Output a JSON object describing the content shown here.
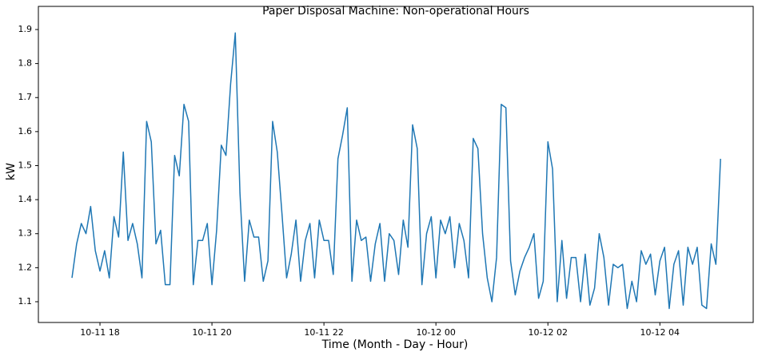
{
  "chart_data": {
    "type": "line",
    "title": "Paper Disposal Machine: Non-operational Hours",
    "x_label": "Time (Month - Day - Hour)",
    "y_label": "kW",
    "x": [
      "10-11 17:30",
      "10-11 17:35",
      "10-11 17:40",
      "10-11 17:45",
      "10-11 17:50",
      "10-11 17:55",
      "10-11 18:00",
      "10-11 18:05",
      "10-11 18:10",
      "10-11 18:15",
      "10-11 18:20",
      "10-11 18:25",
      "10-11 18:30",
      "10-11 18:35",
      "10-11 18:40",
      "10-11 18:45",
      "10-11 18:50",
      "10-11 18:55",
      "10-11 19:00",
      "10-11 19:05",
      "10-11 19:10",
      "10-11 19:15",
      "10-11 19:20",
      "10-11 19:25",
      "10-11 19:30",
      "10-11 19:35",
      "10-11 19:40",
      "10-11 19:45",
      "10-11 19:50",
      "10-11 19:55",
      "10-11 20:00",
      "10-11 20:05",
      "10-11 20:10",
      "10-11 20:15",
      "10-11 20:20",
      "10-11 20:25",
      "10-11 20:30",
      "10-11 20:35",
      "10-11 20:40",
      "10-11 20:45",
      "10-11 20:50",
      "10-11 20:55",
      "10-11 21:00",
      "10-11 21:05",
      "10-11 21:10",
      "10-11 21:15",
      "10-11 21:20",
      "10-11 21:25",
      "10-11 21:30",
      "10-11 21:35",
      "10-11 21:40",
      "10-11 21:45",
      "10-11 21:50",
      "10-11 21:55",
      "10-11 22:00",
      "10-11 22:05",
      "10-11 22:10",
      "10-11 22:15",
      "10-11 22:20",
      "10-11 22:25",
      "10-11 22:30",
      "10-11 22:35",
      "10-11 22:40",
      "10-11 22:45",
      "10-11 22:50",
      "10-11 22:55",
      "10-11 23:00",
      "10-11 23:05",
      "10-11 23:10",
      "10-11 23:15",
      "10-11 23:20",
      "10-11 23:25",
      "10-11 23:30",
      "10-11 23:35",
      "10-11 23:40",
      "10-11 23:45",
      "10-11 23:50",
      "10-11 23:55",
      "10-12 00:00",
      "10-12 00:05",
      "10-12 00:10",
      "10-12 00:15",
      "10-12 00:20",
      "10-12 00:25",
      "10-12 00:30",
      "10-12 00:35",
      "10-12 00:40",
      "10-12 00:45",
      "10-12 00:50",
      "10-12 00:55",
      "10-12 01:00",
      "10-12 01:05",
      "10-12 01:10",
      "10-12 01:15",
      "10-12 01:20",
      "10-12 01:25",
      "10-12 01:30",
      "10-12 01:35",
      "10-12 01:40",
      "10-12 01:45",
      "10-12 01:50",
      "10-12 01:55",
      "10-12 02:00",
      "10-12 02:05",
      "10-12 02:10",
      "10-12 02:15",
      "10-12 02:20",
      "10-12 02:25",
      "10-12 02:30",
      "10-12 02:35",
      "10-12 02:40",
      "10-12 02:45",
      "10-12 02:50",
      "10-12 02:55",
      "10-12 03:00",
      "10-12 03:05",
      "10-12 03:10",
      "10-12 03:15",
      "10-12 03:20",
      "10-12 03:25",
      "10-12 03:30",
      "10-12 03:35",
      "10-12 03:40",
      "10-12 03:45",
      "10-12 03:50",
      "10-12 03:55",
      "10-12 04:00",
      "10-12 04:05",
      "10-12 04:10",
      "10-12 04:15",
      "10-12 04:20",
      "10-12 04:25",
      "10-12 04:30",
      "10-12 04:35",
      "10-12 04:40",
      "10-12 04:45",
      "10-12 04:50",
      "10-12 04:55",
      "10-12 05:00",
      "10-12 05:05"
    ],
    "series": [
      {
        "name": "kW",
        "color": "#1f77b4",
        "values": [
          1.17,
          1.27,
          1.33,
          1.3,
          1.38,
          1.25,
          1.19,
          1.25,
          1.17,
          1.35,
          1.29,
          1.54,
          1.28,
          1.33,
          1.27,
          1.17,
          1.63,
          1.57,
          1.27,
          1.31,
          1.15,
          1.15,
          1.53,
          1.47,
          1.68,
          1.63,
          1.15,
          1.28,
          1.28,
          1.33,
          1.15,
          1.31,
          1.56,
          1.53,
          1.74,
          1.89,
          1.42,
          1.16,
          1.34,
          1.29,
          1.29,
          1.16,
          1.22,
          1.63,
          1.54,
          1.36,
          1.17,
          1.24,
          1.34,
          1.16,
          1.28,
          1.33,
          1.17,
          1.34,
          1.28,
          1.28,
          1.18,
          1.52,
          1.59,
          1.67,
          1.16,
          1.34,
          1.28,
          1.29,
          1.16,
          1.27,
          1.33,
          1.16,
          1.3,
          1.28,
          1.18,
          1.34,
          1.26,
          1.62,
          1.55,
          1.15,
          1.3,
          1.35,
          1.17,
          1.34,
          1.3,
          1.35,
          1.2,
          1.33,
          1.28,
          1.17,
          1.58,
          1.55,
          1.3,
          1.17,
          1.1,
          1.23,
          1.68,
          1.67,
          1.22,
          1.12,
          1.19,
          1.23,
          1.26,
          1.3,
          1.11,
          1.16,
          1.57,
          1.49,
          1.1,
          1.28,
          1.11,
          1.23,
          1.23,
          1.1,
          1.24,
          1.09,
          1.14,
          1.3,
          1.23,
          1.09,
          1.21,
          1.2,
          1.21,
          1.08,
          1.16,
          1.1,
          1.25,
          1.21,
          1.24,
          1.12,
          1.22,
          1.26,
          1.08,
          1.21,
          1.25,
          1.09,
          1.26,
          1.21,
          1.26,
          1.09,
          1.08,
          1.27,
          1.21,
          1.52
        ]
      }
    ],
    "xlim": [
      "10-11 16:54",
      "10-12 05:40"
    ],
    "xticks": [
      "10-11 18",
      "10-11 20",
      "10-11 22",
      "10-12 00",
      "10-12 02",
      "10-12 04"
    ],
    "ylim": [
      1.039,
      1.968
    ],
    "yticks": [
      1.1,
      1.2,
      1.3,
      1.4,
      1.5,
      1.6,
      1.7,
      1.8,
      1.9
    ],
    "grid": false
  }
}
